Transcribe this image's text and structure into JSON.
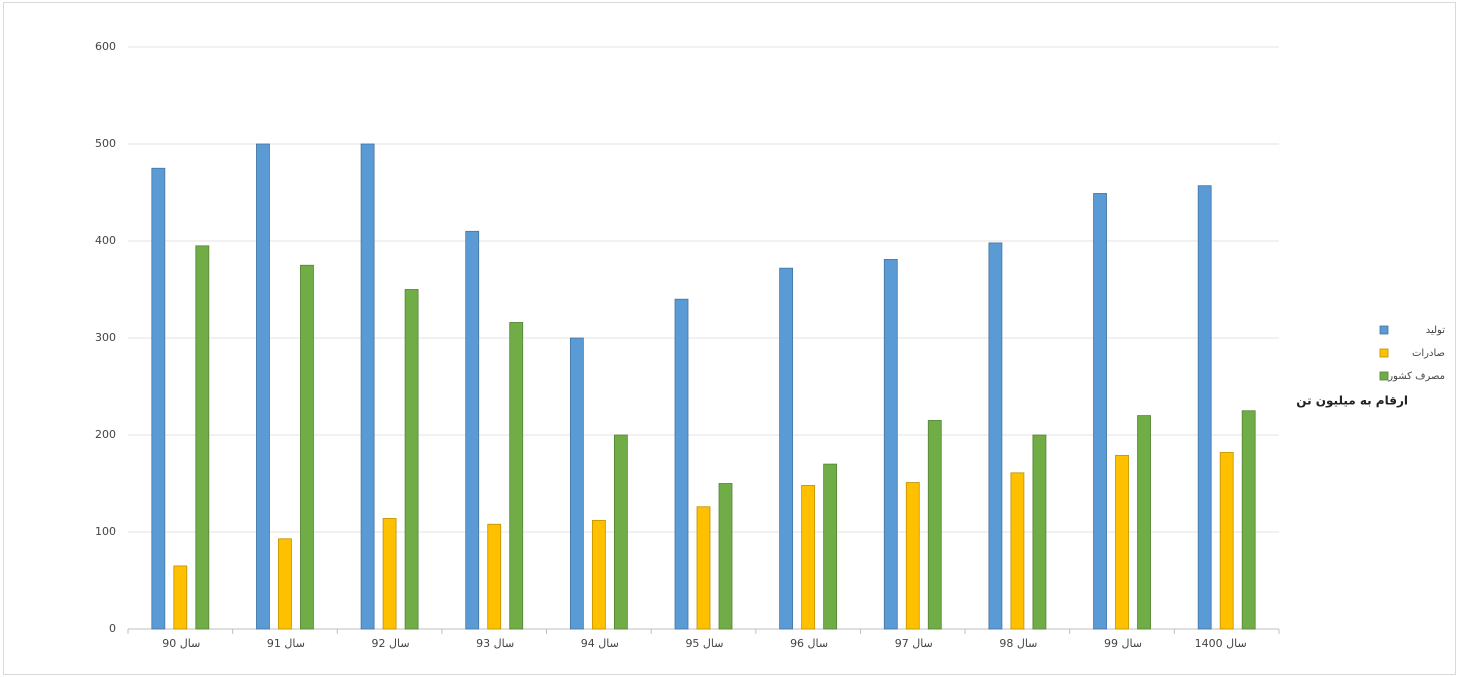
{
  "chart_data": {
    "type": "bar",
    "annotation": "ارقام به میلیون تن",
    "categories": [
      "سال 90",
      "سال 91",
      "سال 92",
      "سال 93",
      "سال 94",
      "سال 95",
      "سال 96",
      "سال 97",
      "سال 98",
      "سال 99",
      "سال 1400"
    ],
    "series": [
      {
        "name": "تولید",
        "color": "#5b9bd5",
        "values": [
          475,
          500,
          500,
          410,
          300,
          340,
          372,
          381,
          398,
          449,
          457
        ]
      },
      {
        "name": "صادرات",
        "color": "#ffc000",
        "values": [
          65,
          93,
          114,
          108,
          112,
          126,
          148,
          151,
          161,
          179,
          182
        ]
      },
      {
        "name": "مصرف کشور",
        "color": "#70ad47",
        "values": [
          395,
          375,
          350,
          316,
          200,
          150,
          170,
          215,
          200,
          220,
          225
        ]
      }
    ],
    "ylim": [
      0,
      600
    ],
    "yticks": [
      0,
      100,
      200,
      300,
      400,
      500,
      600
    ],
    "grid": true,
    "legend": "right"
  }
}
